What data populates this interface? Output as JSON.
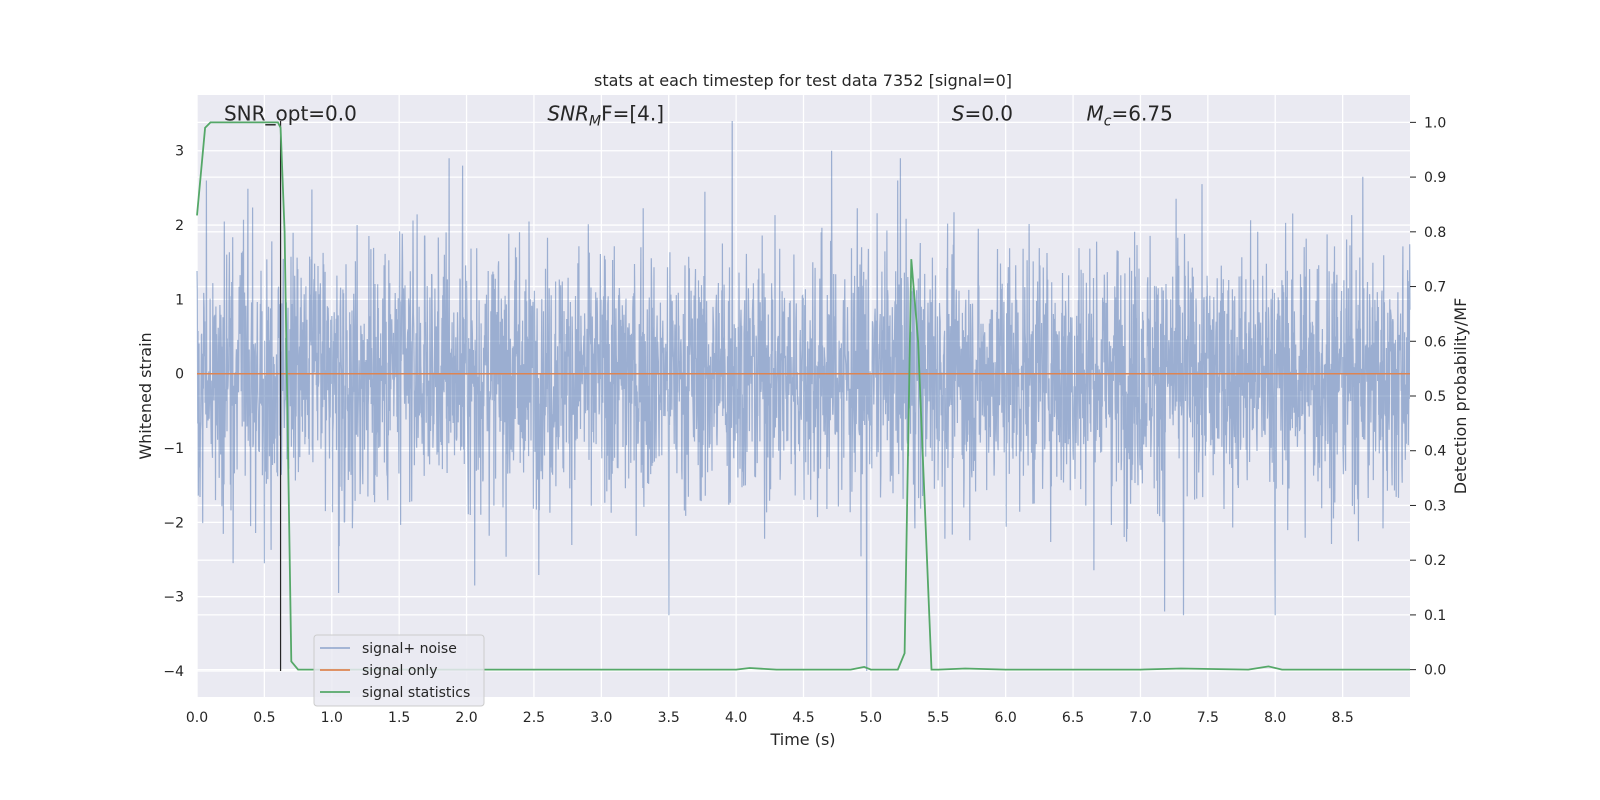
{
  "chart_data": {
    "type": "line",
    "title": "stats at each timestep for test data 7352 [signal=0]",
    "xlabel": "Time (s)",
    "ylabel": "Whitened strain",
    "y2label": "Detection probability/MF",
    "xlim": [
      0.0,
      9.0
    ],
    "ylim": [
      -4.35,
      3.75
    ],
    "y2lim": [
      -0.05,
      1.05
    ],
    "x_ticks": [
      "0.0",
      "0.5",
      "1.0",
      "1.5",
      "2.0",
      "2.5",
      "3.0",
      "3.5",
      "4.0",
      "4.5",
      "5.0",
      "5.5",
      "6.0",
      "6.5",
      "7.0",
      "7.5",
      "8.0",
      "8.5"
    ],
    "x_tick_values": [
      0.0,
      0.5,
      1.0,
      1.5,
      2.0,
      2.5,
      3.0,
      3.5,
      4.0,
      4.5,
      5.0,
      5.5,
      6.0,
      6.5,
      7.0,
      7.5,
      8.0,
      8.5
    ],
    "y_ticks": [
      "3",
      "2",
      "1",
      "0",
      "−1",
      "−2",
      "−3",
      "−4"
    ],
    "y_tick_values": [
      3,
      2,
      1,
      0,
      -1,
      -2,
      -3,
      -4
    ],
    "y2_ticks": [
      "1.0",
      "0.9",
      "0.8",
      "0.7",
      "0.6",
      "0.5",
      "0.4",
      "0.3",
      "0.2",
      "0.1",
      "0.0"
    ],
    "y2_tick_values": [
      1.0,
      0.9,
      0.8,
      0.7,
      0.6,
      0.5,
      0.4,
      0.3,
      0.2,
      0.1,
      0.0
    ],
    "grid": true,
    "legend_position": "lower-left",
    "annotations": [
      {
        "text": "SNR_opt=0.0",
        "kind": "plain"
      },
      {
        "math": "SNR",
        "sub": "M",
        "tail": "F=[4.]",
        "kind": "math"
      },
      {
        "math": "S",
        "sub": "",
        "tail": "=0.0",
        "kind": "math"
      },
      {
        "math": "M",
        "sub": "c",
        "tail": "=6.75",
        "kind": "math"
      }
    ],
    "annotation_x": [
      0.2,
      2.6,
      5.6,
      6.6
    ],
    "annotation_y": 3.5,
    "marker_line": {
      "x": 0.62,
      "y_from": -4.0,
      "y_to": 3.4
    },
    "series": [
      {
        "name": "signal+ noise",
        "color": "#4c72b0",
        "opacity": 0.5,
        "axis": "left",
        "noise_samples": 3600,
        "noise_std": 0.85,
        "noise_seed": 7352,
        "spikes": [
          {
            "x": 0.07,
            "y": 2.6
          },
          {
            "x": 0.5,
            "y": -2.55
          },
          {
            "x": 1.05,
            "y": -2.95
          },
          {
            "x": 1.87,
            "y": 2.9
          },
          {
            "x": 1.97,
            "y": 2.8
          },
          {
            "x": 2.06,
            "y": -2.85
          },
          {
            "x": 3.5,
            "y": -3.25
          },
          {
            "x": 3.97,
            "y": 3.4
          },
          {
            "x": 4.71,
            "y": 3.0
          },
          {
            "x": 4.97,
            "y": -4.0
          },
          {
            "x": 5.2,
            "y": 2.6
          },
          {
            "x": 7.18,
            "y": -3.2
          },
          {
            "x": 7.32,
            "y": -3.25
          },
          {
            "x": 8.0,
            "y": -3.25
          },
          {
            "x": 8.65,
            "y": 2.65
          }
        ]
      },
      {
        "name": "signal only",
        "color": "#dd8452",
        "axis": "left",
        "x": [
          0.0,
          9.0
        ],
        "y": [
          0.0,
          0.0
        ]
      },
      {
        "name": "signal statistics",
        "color": "#55a868",
        "axis": "right",
        "x": [
          0.0,
          0.06,
          0.1,
          0.15,
          0.3,
          0.5,
          0.6,
          0.62,
          0.65,
          0.7,
          0.75,
          0.8,
          1.0,
          2.0,
          3.0,
          4.0,
          4.1,
          4.3,
          4.6,
          4.85,
          4.95,
          5.0,
          5.2,
          5.25,
          5.3,
          5.35,
          5.45,
          5.5,
          5.7,
          6.0,
          7.0,
          7.3,
          7.8,
          7.95,
          8.05,
          8.5,
          9.0
        ],
        "y": [
          0.83,
          0.99,
          1.0,
          1.0,
          1.0,
          1.0,
          1.0,
          0.99,
          0.8,
          0.015,
          0.0,
          0.0,
          0.0,
          0.0,
          0.0,
          0.0,
          0.003,
          0.0,
          0.0,
          0.0,
          0.005,
          0.0,
          0.0,
          0.03,
          0.75,
          0.6,
          0.0,
          0.0,
          0.002,
          0.0,
          0.0,
          0.002,
          0.0,
          0.006,
          0.0,
          0.0,
          0.0
        ]
      }
    ]
  }
}
